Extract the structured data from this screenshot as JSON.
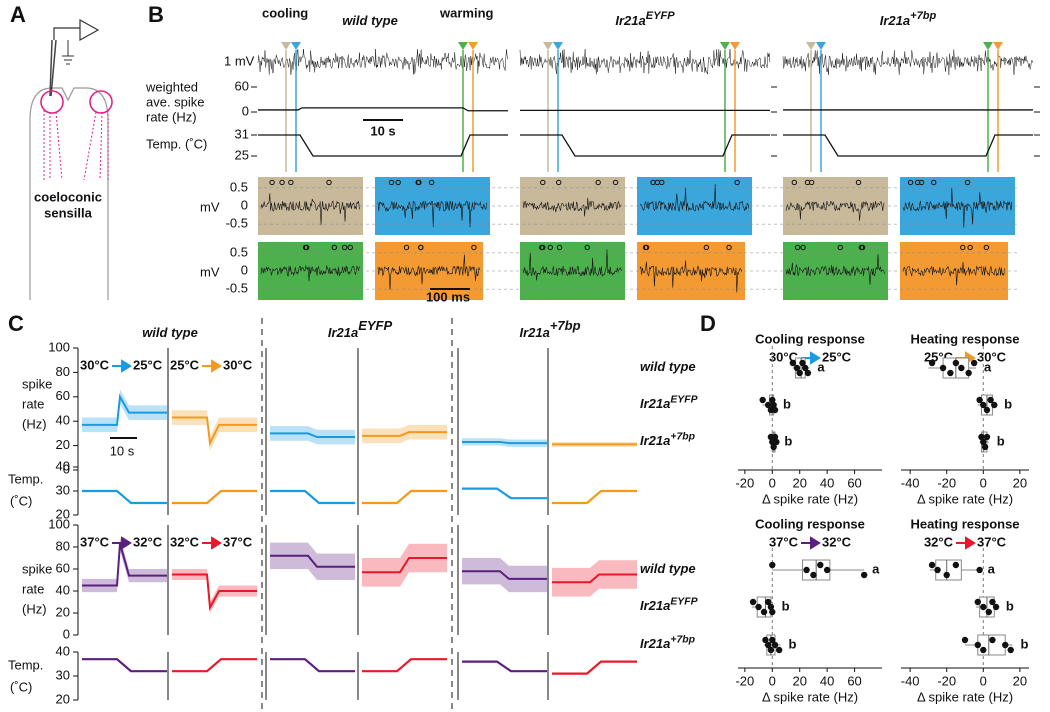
{
  "panel_labels": [
    "A",
    "B",
    "C",
    "D"
  ],
  "panel_a": {
    "sensilla_label": [
      "coeloconic",
      "sensilla"
    ]
  },
  "genotypes": [
    {
      "name": "wild type"
    },
    {
      "name": "Ir21a",
      "sup": "EYFP"
    },
    {
      "name": "Ir21a",
      "sup": "+7bp"
    }
  ],
  "panel_b": {
    "cooling_label": "cooling",
    "warming_label": "warming",
    "voltage_scale": "1 mV",
    "rate_axis_label": [
      "weighted",
      "ave. spike",
      "rate (Hz)"
    ],
    "rate_ticks": [
      0,
      60
    ],
    "rate_ylim": [
      -5,
      65
    ],
    "temp_axis_label": "Temp. (˚C)",
    "temp_ticks": [
      25,
      31
    ],
    "temp_ylim": [
      24,
      32
    ],
    "time_scale": "10 s",
    "inset_axis_label": "mV",
    "inset_ticks": [
      0.5,
      0,
      -0.5
    ],
    "inset_ylim": [
      -0.8,
      0.8
    ],
    "inset_time_scale": "100 ms",
    "traces": [
      {
        "rate": [
          5,
          10,
          3
        ],
        "temp": [
          31,
          25,
          31
        ]
      },
      {
        "rate": [
          4,
          4,
          4
        ],
        "temp": [
          31,
          25,
          31
        ]
      },
      {
        "rate": [
          5,
          5,
          5
        ],
        "temp": [
          31,
          25,
          31
        ]
      }
    ]
  },
  "panel_c": {
    "rate_axis_label": [
      "spike",
      "rate",
      "(Hz)"
    ],
    "rate_ticks": [
      0,
      20,
      40,
      60,
      80,
      100
    ],
    "rate_ylim": [
      0,
      100
    ],
    "temp_axis_label": [
      "Temp.",
      "(˚C)"
    ],
    "temp_ticks": [
      20,
      30,
      40
    ],
    "temp_ylim": [
      20,
      40
    ],
    "time_scale": "10 s",
    "rows": [
      {
        "conditions": [
          {
            "from": "30°C",
            "to": "25°C",
            "color": "#1a9be0"
          },
          {
            "from": "25°C",
            "to": "30°C",
            "color": "#f39a1e"
          }
        ],
        "traces": [
          [
            {
              "rate": [
                37,
                60,
                47
              ],
              "sd": 6,
              "temp": [
                30,
                25
              ]
            },
            {
              "rate": [
                43,
                22,
                37
              ],
              "sd": 6,
              "temp": [
                25,
                30
              ]
            }
          ],
          [
            {
              "rate": [
                30,
                30,
                27
              ],
              "sd": 6,
              "temp": [
                30,
                25
              ]
            },
            {
              "rate": [
                28,
                28,
                31
              ],
              "sd": 6,
              "temp": [
                25,
                30
              ]
            }
          ],
          [
            {
              "rate": [
                23,
                23,
                22
              ],
              "sd": 3,
              "temp": [
                31,
                27
              ]
            },
            {
              "rate": [
                21,
                21,
                21
              ],
              "sd": 2,
              "temp": [
                25,
                30
              ]
            }
          ]
        ]
      },
      {
        "conditions": [
          {
            "from": "37°C",
            "to": "32°C",
            "color": "#5b1f80"
          },
          {
            "from": "32°C",
            "to": "37°C",
            "color": "#e8172a"
          }
        ],
        "traces": [
          [
            {
              "rate": [
                45,
                83,
                54
              ],
              "sd": 6,
              "temp": [
                37,
                32
              ]
            },
            {
              "rate": [
                55,
                25,
                40
              ],
              "sd": 5,
              "temp": [
                32,
                37
              ]
            }
          ],
          [
            {
              "rate": [
                72,
                72,
                62
              ],
              "sd": 12,
              "temp": [
                37,
                32
              ]
            },
            {
              "rate": [
                57,
                57,
                70
              ],
              "sd": 13,
              "temp": [
                32,
                37
              ]
            }
          ],
          [
            {
              "rate": [
                58,
                58,
                51
              ],
              "sd": 12,
              "temp": [
                36,
                32
              ]
            },
            {
              "rate": [
                48,
                48,
                55
              ],
              "sd": 13,
              "temp": [
                31,
                36
              ]
            }
          ]
        ]
      }
    ]
  },
  "panel_d": [
    {
      "title": "Cooling response",
      "from": "30°C",
      "to": "25°C",
      "color": "#1a9be0",
      "x_label": "Δ spike rate (Hz)",
      "xticks": [
        -20,
        0,
        20,
        40,
        60
      ],
      "xlim": [
        -25,
        80
      ],
      "rows": [
        {
          "points": [
            15,
            18,
            20,
            22,
            24,
            26
          ],
          "box": [
            17,
            21,
            24
          ],
          "whiskers": [
            15,
            27
          ],
          "letter": "a"
        },
        {
          "points": [
            -7,
            -3,
            -1,
            0,
            1,
            2
          ],
          "box": [
            -2,
            0,
            1
          ],
          "whiskers": [
            -7,
            2
          ],
          "letter": "b"
        },
        {
          "points": [
            -1,
            0,
            1,
            2,
            3
          ],
          "box": [
            0,
            1,
            2
          ],
          "whiskers": [
            -1,
            3
          ],
          "letter": "b"
        }
      ]
    },
    {
      "title": "Heating response",
      "from": "25°C",
      "to": "30°C",
      "color": "#f39a1e",
      "x_label": "Δ spike rate (Hz)",
      "xticks": [
        -40,
        -20,
        0,
        20
      ],
      "xlim": [
        -45,
        25
      ],
      "rows": [
        {
          "points": [
            -28,
            -22,
            -18,
            -15,
            -12,
            -8,
            -5
          ],
          "box": [
            -22,
            -15,
            -8
          ],
          "whiskers": [
            -30,
            -4
          ],
          "letter": "a"
        },
        {
          "points": [
            -2,
            0,
            2,
            4,
            6
          ],
          "box": [
            -1,
            2,
            5
          ],
          "whiskers": [
            -3,
            7
          ],
          "letter": "b"
        },
        {
          "points": [
            -1,
            0,
            1,
            2
          ],
          "box": [
            -1,
            0,
            2
          ],
          "whiskers": [
            -2,
            3
          ],
          "letter": "b"
        }
      ]
    },
    {
      "title": "Cooling response",
      "from": "37°C",
      "to": "32°C",
      "color": "#5b1f80",
      "x_label": "Δ spike rate (Hz)",
      "xticks": [
        -20,
        0,
        20,
        40,
        60
      ],
      "xlim": [
        -25,
        80
      ],
      "rows": [
        {
          "points": [
            0,
            25,
            30,
            35,
            40,
            67
          ],
          "box": [
            22,
            32,
            42
          ],
          "whiskers": [
            0,
            67
          ],
          "letter": "a"
        },
        {
          "points": [
            -14,
            -10,
            -6,
            -3,
            -1,
            0
          ],
          "box": [
            -11,
            -5,
            -1
          ],
          "whiskers": [
            -15,
            1
          ],
          "letter": "b"
        },
        {
          "points": [
            -5,
            -3,
            -1,
            0,
            2,
            5
          ],
          "box": [
            -4,
            -1,
            2
          ],
          "whiskers": [
            -6,
            6
          ],
          "letter": "b"
        }
      ]
    },
    {
      "title": "Heating response",
      "from": "32°C",
      "to": "37°C",
      "color": "#e8172a",
      "x_label": "Δ spike rate (Hz)",
      "xticks": [
        -40,
        -20,
        0,
        20
      ],
      "xlim": [
        -45,
        25
      ],
      "rows": [
        {
          "points": [
            -28,
            -25,
            -20,
            -15,
            -2
          ],
          "box": [
            -26,
            -20,
            -12
          ],
          "whiskers": [
            -29,
            -2
          ],
          "letter": "a"
        },
        {
          "points": [
            -3,
            0,
            3,
            5,
            7
          ],
          "box": [
            -2,
            2,
            6
          ],
          "whiskers": [
            -4,
            8
          ],
          "letter": "b"
        },
        {
          "points": [
            -10,
            -3,
            0,
            5,
            12,
            15
          ],
          "box": [
            -3,
            3,
            12
          ],
          "whiskers": [
            -10,
            16
          ],
          "letter": "b"
        }
      ]
    }
  ]
}
